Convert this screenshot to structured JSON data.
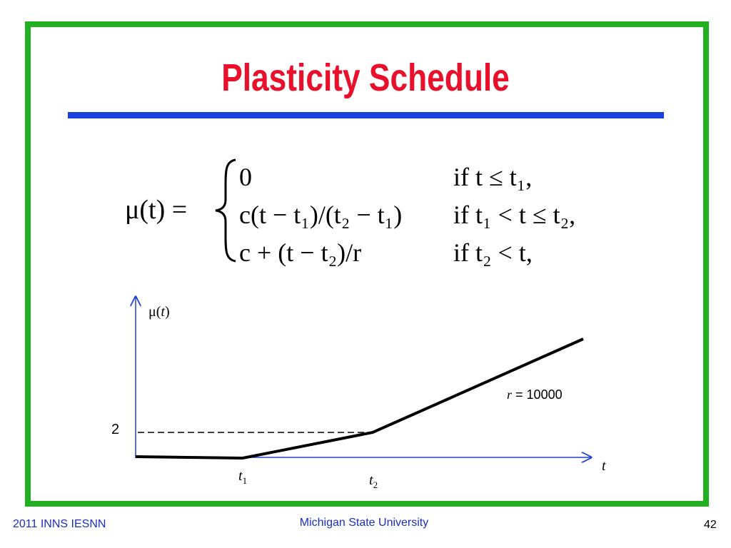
{
  "header": {
    "title": "Plasticity Schedule"
  },
  "formula": {
    "lhs": "μ(t) =",
    "cases": [
      {
        "expr": "0",
        "cond": "if t ≤ t₁,"
      },
      {
        "expr": "c(t − t₁)/(t₂ − t₁)",
        "cond": "if t₁ < t ≤ t₂,"
      },
      {
        "expr": "c + (t − t₂)/r",
        "cond": "if t₂ < t,"
      }
    ]
  },
  "diagram": {
    "y_axis_label": {
      "mu": "μ",
      "open": "(",
      "var": "t",
      "close": ")"
    },
    "level_label": "2",
    "rate_label": {
      "var": "r",
      "rest": "= 10000"
    },
    "x_axis_label": "t",
    "t1": {
      "base": "t",
      "sub": "1"
    },
    "t2": {
      "base": "t",
      "sub": "2"
    }
  },
  "footer": {
    "left": "2011 INNS IESNN",
    "center": "Michigan State University",
    "page": "42"
  }
}
